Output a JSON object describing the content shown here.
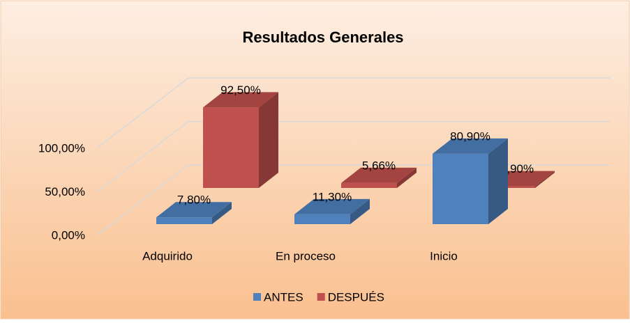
{
  "chart_data": {
    "type": "bar3d",
    "title": "Resultados Generales",
    "categories": [
      "Adquirido",
      "En proceso",
      "Inicio"
    ],
    "series": [
      {
        "name": "ANTES",
        "color": "#4f81bd",
        "values": [
          7.8,
          11.3,
          80.9
        ],
        "value_labels": [
          "7,80%",
          "11,30%",
          "80,90%"
        ]
      },
      {
        "name": "DESPUÉS",
        "color": "#c0504d",
        "values": [
          92.5,
          5.66,
          1.9
        ],
        "value_labels": [
          "92,50%",
          "5,66%",
          "1,90%"
        ]
      }
    ],
    "ylim": [
      0,
      100
    ],
    "yticks": [
      {
        "value": 0,
        "label": "0,00%"
      },
      {
        "value": 50,
        "label": "50,00%"
      },
      {
        "value": 100,
        "label": "100,00%"
      }
    ],
    "grid": true,
    "legend": "bottom"
  }
}
